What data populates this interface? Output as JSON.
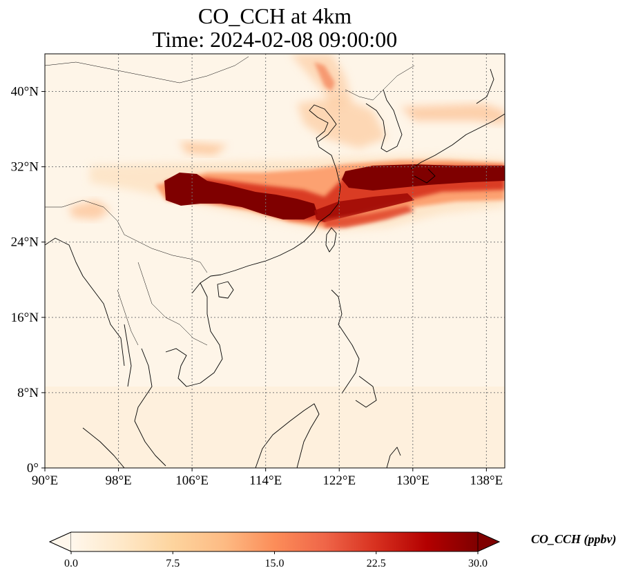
{
  "title": {
    "line1": "CO_CCH at 4km",
    "line2": "Time: 2024-02-08 09:00:00"
  },
  "map": {
    "projection": "PlateCarree",
    "lon_range": [
      90,
      140
    ],
    "lat_range": [
      0,
      44
    ],
    "gridlines": true,
    "x_ticks": [
      {
        "value": 90,
        "label": "90°E"
      },
      {
        "value": 98,
        "label": "98°E"
      },
      {
        "value": 106,
        "label": "106°E"
      },
      {
        "value": 114,
        "label": "114°E"
      },
      {
        "value": 122,
        "label": "122°E"
      },
      {
        "value": 130,
        "label": "130°E"
      },
      {
        "value": 138,
        "label": "138°E"
      }
    ],
    "y_ticks": [
      {
        "value": 0,
        "label": "0°"
      },
      {
        "value": 8,
        "label": "8°N"
      },
      {
        "value": 16,
        "label": "16°N"
      },
      {
        "value": 24,
        "label": "24°N"
      },
      {
        "value": 32,
        "label": "32°N"
      },
      {
        "value": 40,
        "label": "40°N"
      }
    ]
  },
  "colorbar": {
    "colormap": "OrRd",
    "min": 0.0,
    "max": 30.0,
    "extend": "both",
    "ticks": [
      "0.0",
      "7.5",
      "15.0",
      "22.5",
      "30.0"
    ],
    "label": "CO_CCH (ppbv)",
    "colors": [
      "#fff7ec",
      "#fee8c8",
      "#fdd49e",
      "#fdbb84",
      "#fc8d59",
      "#ef6548",
      "#d7301f",
      "#b30000",
      "#7f0000"
    ]
  }
}
